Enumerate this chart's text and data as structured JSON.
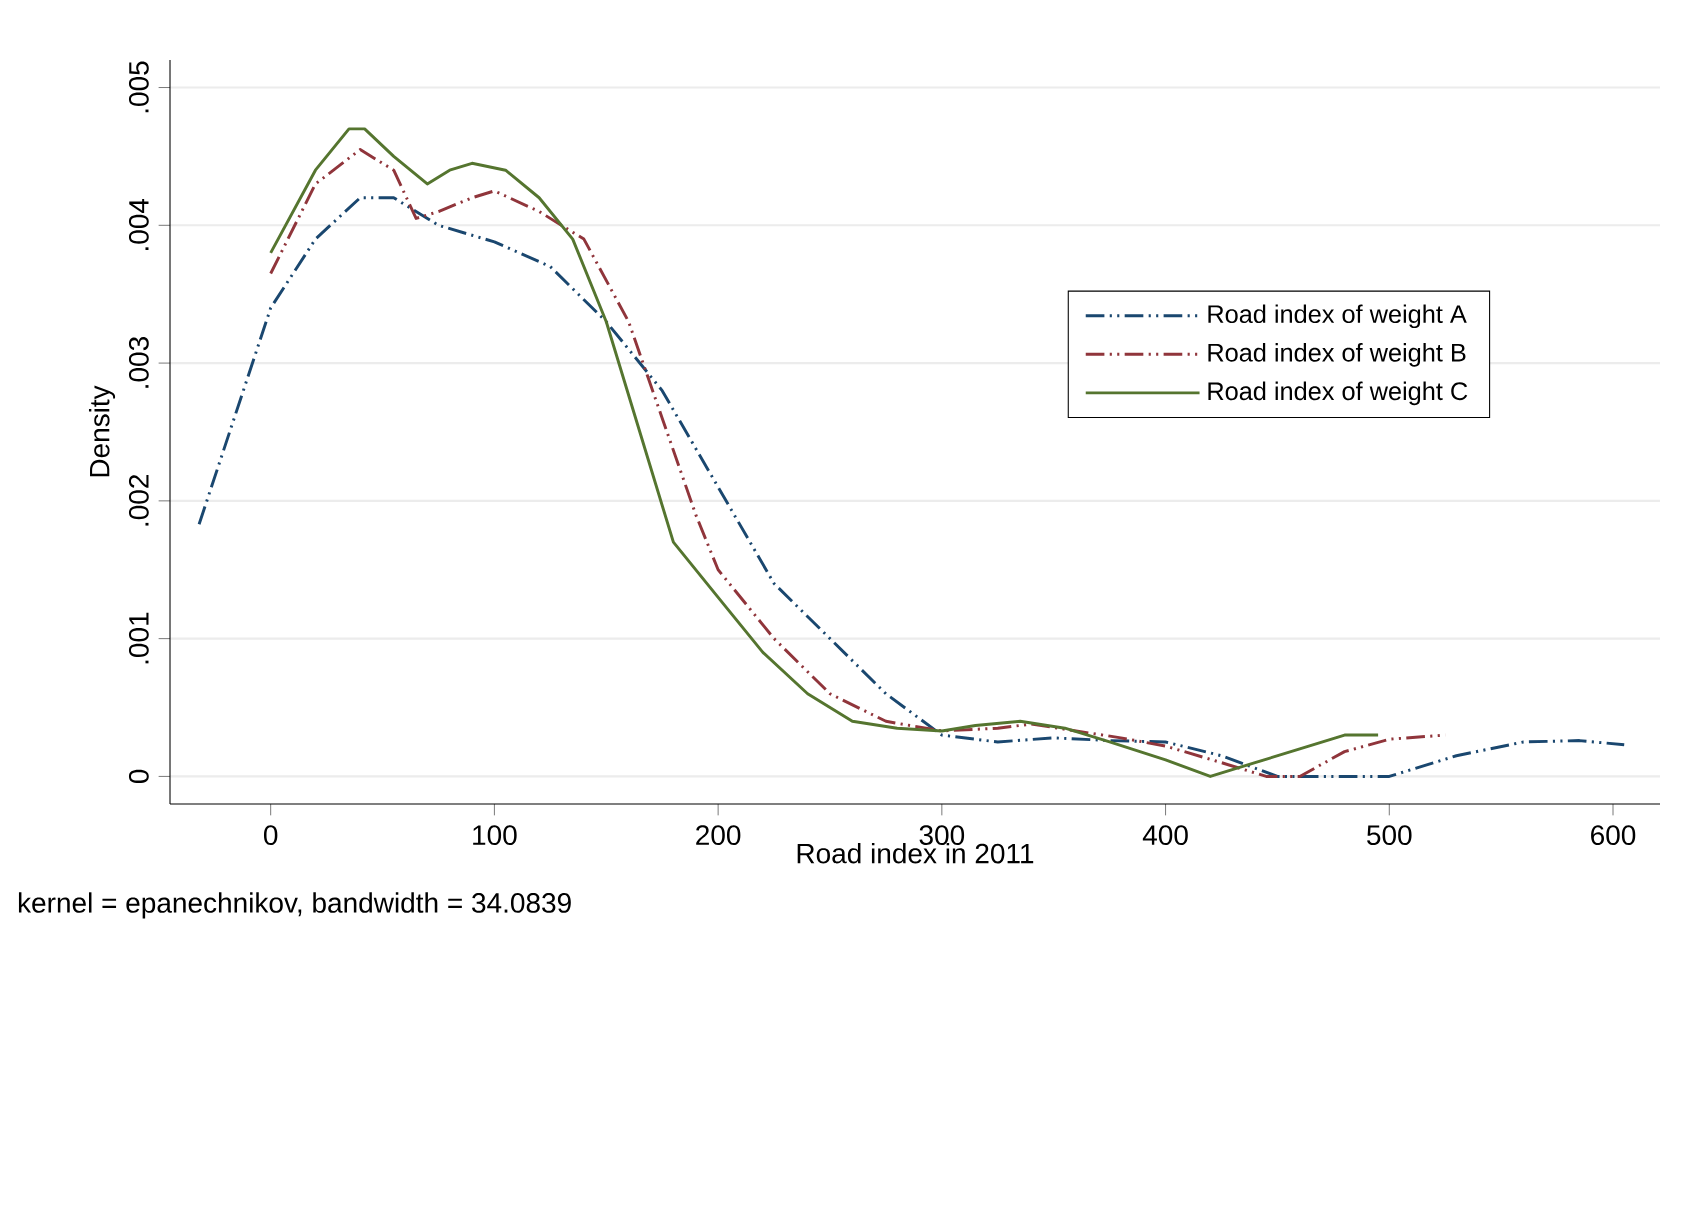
{
  "chart_data": {
    "type": "line",
    "xlabel": "Road index in 2011",
    "ylabel": "Density",
    "annotations": [
      "kernel = epanechnikov, bandwidth = 34.0839"
    ],
    "xlim": [
      -45,
      621
    ],
    "ylim": [
      -0.0002,
      0.0052
    ],
    "xticks": [
      0,
      100,
      200,
      300,
      400,
      500,
      600
    ],
    "yticks": [
      {
        "value": 0,
        "label": "0"
      },
      {
        "value": 0.001,
        "label": ".001"
      },
      {
        "value": 0.002,
        "label": ".002"
      },
      {
        "value": 0.003,
        "label": ".003"
      },
      {
        "value": 0.004,
        "label": ".004"
      },
      {
        "value": 0.005,
        "label": ".005"
      }
    ],
    "grid": "y",
    "legend": "top right",
    "series": [
      {
        "name": "Road index of weight A",
        "color": "#1a476f",
        "line_style": "dashed",
        "x": [
          -32,
          0,
          20,
          40,
          55,
          75,
          100,
          125,
          150,
          175,
          200,
          225,
          250,
          275,
          300,
          325,
          350,
          375,
          400,
          425,
          450,
          480,
          500,
          530,
          560,
          585,
          605
        ],
        "values": [
          0.00183,
          0.0034,
          0.0039,
          0.0042,
          0.0042,
          0.004,
          0.00388,
          0.0037,
          0.0033,
          0.0028,
          0.0021,
          0.0014,
          0.001,
          0.0006,
          0.0003,
          0.00025,
          0.00028,
          0.00026,
          0.00025,
          0.00015,
          0.0,
          0.0,
          0.0,
          0.00015,
          0.00025,
          0.00026,
          0.00023
        ]
      },
      {
        "name": "Road index of weight B",
        "color": "#90353b",
        "line_style": "dashed",
        "x": [
          0,
          20,
          40,
          55,
          65,
          75,
          90,
          100,
          120,
          140,
          160,
          175,
          190,
          200,
          225,
          250,
          275,
          300,
          325,
          340,
          360,
          380,
          400,
          425,
          445,
          460,
          480,
          500,
          525
        ],
        "values": [
          0.00365,
          0.0043,
          0.00455,
          0.0044,
          0.00405,
          0.0041,
          0.0042,
          0.00425,
          0.0041,
          0.0039,
          0.0033,
          0.0026,
          0.0019,
          0.0015,
          0.001,
          0.0006,
          0.0004,
          0.00033,
          0.00035,
          0.00038,
          0.00033,
          0.00028,
          0.00022,
          0.0001,
          0.0,
          0.0,
          0.00018,
          0.00027,
          0.0003
        ]
      },
      {
        "name": "Road index of weight C",
        "color": "#55752f",
        "line_style": "solid",
        "x": [
          0,
          20,
          35,
          42,
          55,
          70,
          80,
          90,
          105,
          120,
          135,
          150,
          165,
          180,
          200,
          220,
          240,
          260,
          280,
          300,
          315,
          335,
          355,
          375,
          400,
          420,
          440,
          460,
          480,
          495
        ],
        "values": [
          0.0038,
          0.0044,
          0.0047,
          0.0047,
          0.0045,
          0.0043,
          0.0044,
          0.00445,
          0.0044,
          0.0042,
          0.0039,
          0.0033,
          0.0025,
          0.0017,
          0.0013,
          0.0009,
          0.0006,
          0.0004,
          0.00035,
          0.00033,
          0.00037,
          0.0004,
          0.00035,
          0.00025,
          0.00012,
          0.0,
          0.0001,
          0.0002,
          0.0003,
          0.0003
        ]
      }
    ]
  }
}
